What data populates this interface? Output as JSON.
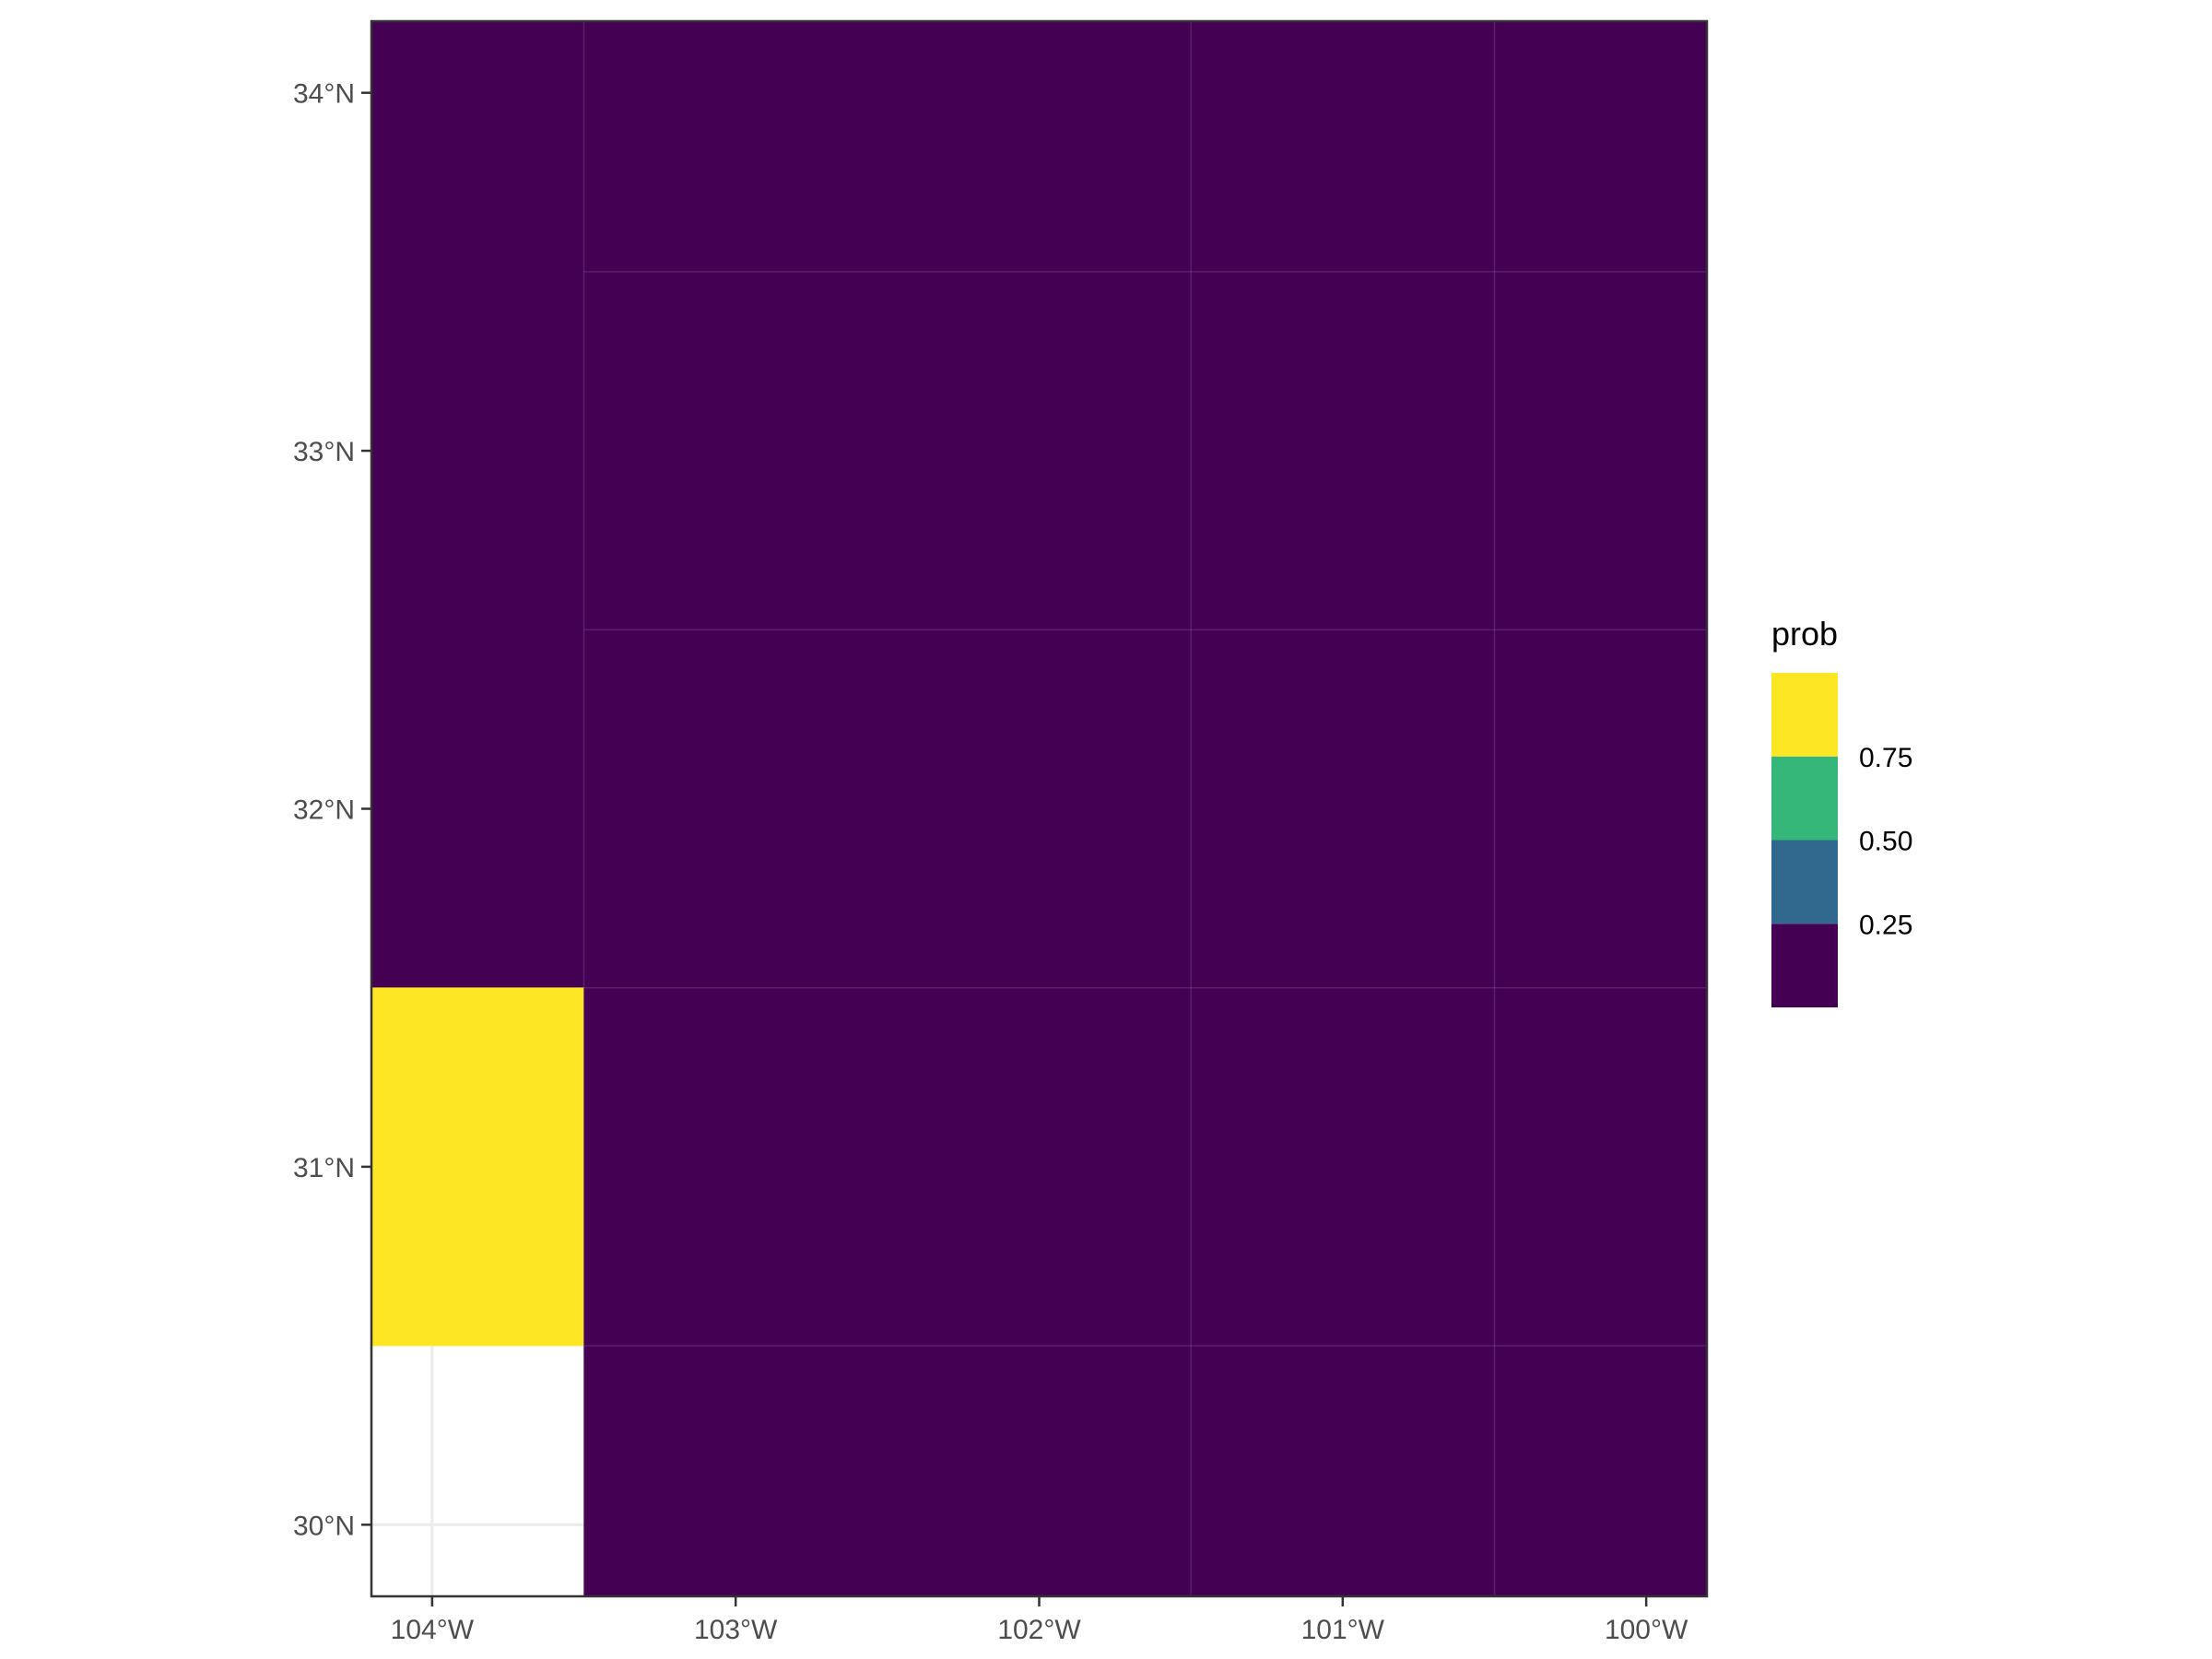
{
  "chart_data": {
    "type": "heatmap",
    "title": "",
    "xlabel": "",
    "ylabel": "",
    "xlim": [
      -104.2,
      -99.8
    ],
    "ylim": [
      29.8,
      34.2
    ],
    "x_ticks": [
      {
        "value": -104,
        "label": "104°W"
      },
      {
        "value": -103,
        "label": "103°W"
      },
      {
        "value": -102,
        "label": "102°W"
      },
      {
        "value": -101,
        "label": "101°W"
      },
      {
        "value": -100,
        "label": "100°W"
      }
    ],
    "y_ticks": [
      {
        "value": 30,
        "label": "30°N"
      },
      {
        "value": 31,
        "label": "31°N"
      },
      {
        "value": 32,
        "label": "32°N"
      },
      {
        "value": 33,
        "label": "33°N"
      },
      {
        "value": 34,
        "label": "34°N"
      }
    ],
    "grid": true,
    "cells": [
      {
        "lon": [
          -104.2,
          -103.5
        ],
        "lat": [
          33.5,
          34.2
        ],
        "prob": 0.0
      },
      {
        "lon": [
          -103.5,
          -101.5
        ],
        "lat": [
          33.5,
          34.2
        ],
        "prob": 0.0
      },
      {
        "lon": [
          -101.5,
          -100.5
        ],
        "lat": [
          33.5,
          34.2
        ],
        "prob": 0.0
      },
      {
        "lon": [
          -100.5,
          -99.8
        ],
        "lat": [
          33.5,
          34.2
        ],
        "prob": 0.0
      },
      {
        "lon": [
          -104.2,
          -103.5
        ],
        "lat": [
          32.5,
          33.5
        ],
        "prob": 0.0
      },
      {
        "lon": [
          -103.5,
          -101.5
        ],
        "lat": [
          32.5,
          33.5
        ],
        "prob": 0.0
      },
      {
        "lon": [
          -101.5,
          -100.5
        ],
        "lat": [
          32.5,
          33.5
        ],
        "prob": 0.0
      },
      {
        "lon": [
          -100.5,
          -99.8
        ],
        "lat": [
          32.5,
          33.5
        ],
        "prob": 0.0
      },
      {
        "lon": [
          -104.2,
          -103.5
        ],
        "lat": [
          31.5,
          32.5
        ],
        "prob": 0.0
      },
      {
        "lon": [
          -103.5,
          -101.5
        ],
        "lat": [
          31.5,
          32.5
        ],
        "prob": 0.0
      },
      {
        "lon": [
          -101.5,
          -100.5
        ],
        "lat": [
          31.5,
          32.5
        ],
        "prob": 0.0
      },
      {
        "lon": [
          -100.5,
          -99.8
        ],
        "lat": [
          31.5,
          32.5
        ],
        "prob": 0.0
      },
      {
        "lon": [
          -104.2,
          -103.5
        ],
        "lat": [
          30.5,
          31.5
        ],
        "prob": 1.0
      },
      {
        "lon": [
          -103.5,
          -101.5
        ],
        "lat": [
          30.5,
          31.5
        ],
        "prob": 0.0
      },
      {
        "lon": [
          -101.5,
          -100.5
        ],
        "lat": [
          30.5,
          31.5
        ],
        "prob": 0.0
      },
      {
        "lon": [
          -100.5,
          -99.8
        ],
        "lat": [
          30.5,
          31.5
        ],
        "prob": 0.0
      },
      {
        "lon": [
          -103.5,
          -101.5
        ],
        "lat": [
          29.8,
          30.5
        ],
        "prob": 0.0
      },
      {
        "lon": [
          -101.5,
          -100.5
        ],
        "lat": [
          29.8,
          30.5
        ],
        "prob": 0.0
      },
      {
        "lon": [
          -100.5,
          -99.8
        ],
        "lat": [
          29.8,
          30.5
        ],
        "prob": 0.0
      }
    ],
    "legend": {
      "title": "prob",
      "placement": "right",
      "bins": [
        {
          "from": 0.0,
          "to": 0.25,
          "color": "#440154"
        },
        {
          "from": 0.25,
          "to": 0.5,
          "color": "#31688e"
        },
        {
          "from": 0.5,
          "to": 0.75,
          "color": "#35b779"
        },
        {
          "from": 0.75,
          "to": 1.0,
          "color": "#fde725"
        }
      ],
      "labels": [
        "0.25",
        "0.50",
        "0.75"
      ]
    },
    "colors": {
      "panel_background": "#ffffff",
      "panel_border": "#333333",
      "grid": "#ebebeb",
      "axis_text": "#4d4d4d"
    }
  }
}
